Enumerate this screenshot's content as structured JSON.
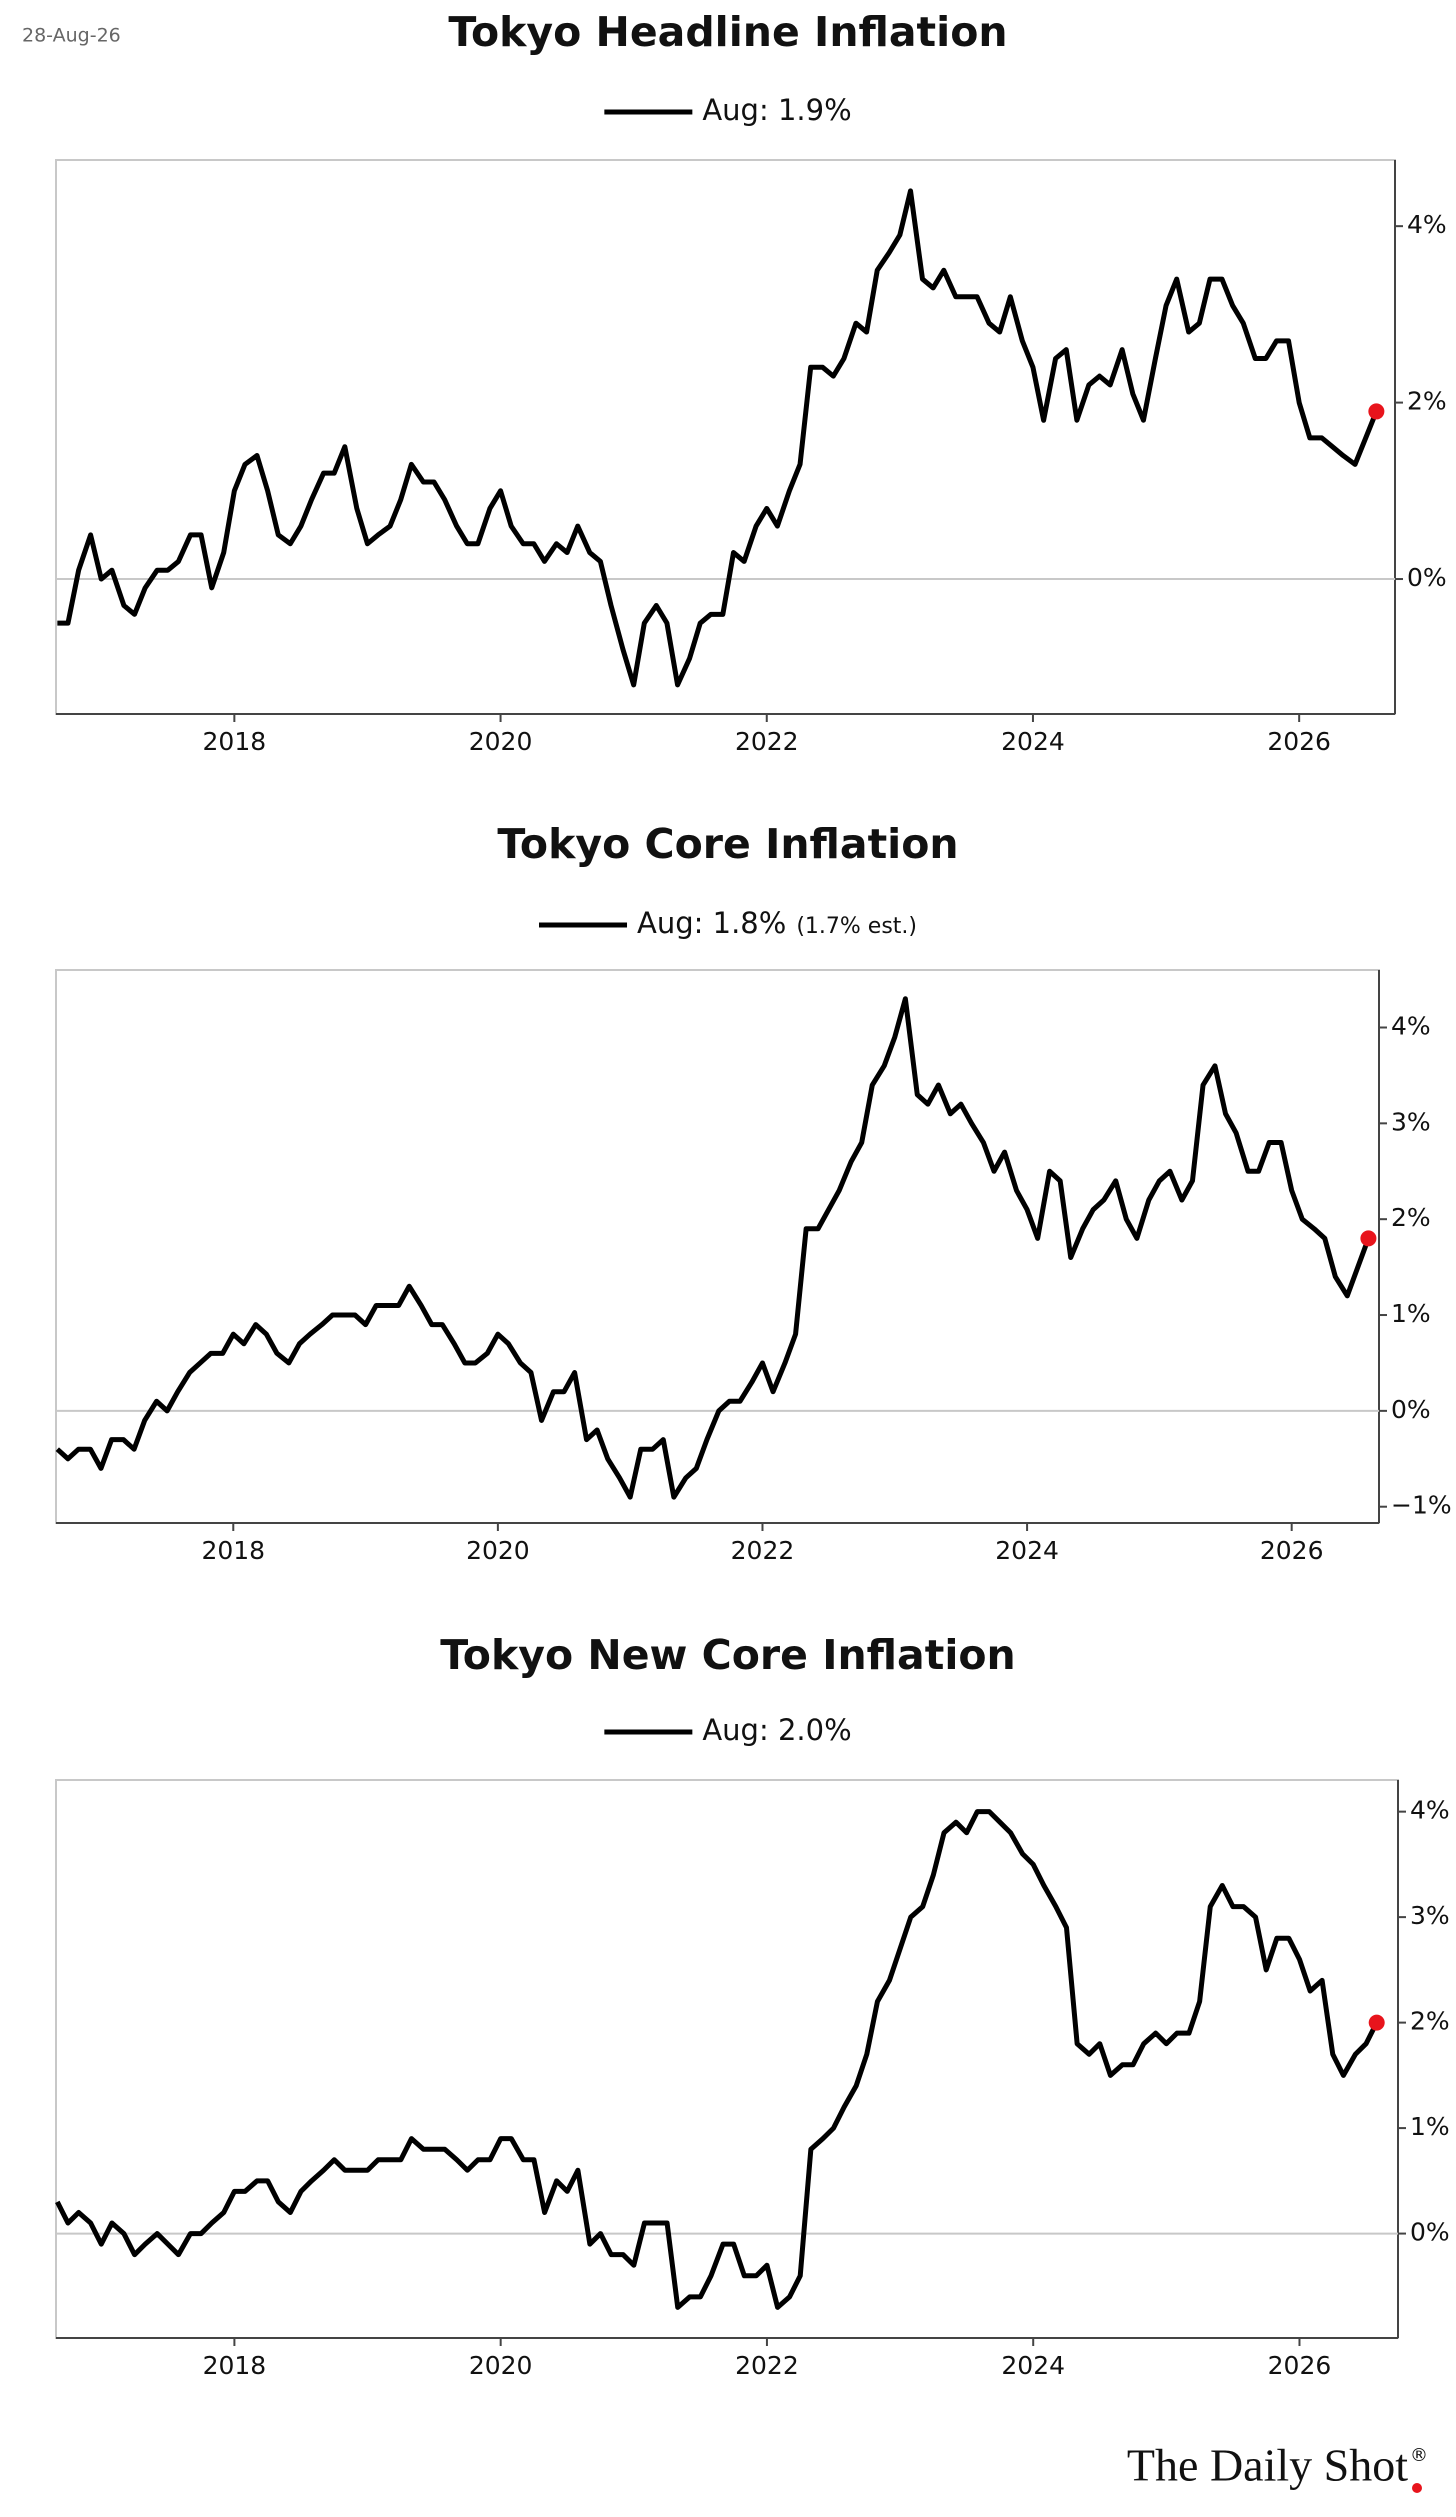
{
  "date": "28-Aug-26",
  "source": "The Daily Shot",
  "source_mark": "®",
  "chart_data": [
    {
      "type": "line",
      "title": "Tokyo Headline Inflation",
      "x": [
        2016.67,
        2016.75,
        2016.83,
        2016.92,
        2017.0,
        2017.08,
        2017.17,
        2017.25,
        2017.33,
        2017.42,
        2017.5,
        2017.58,
        2017.67,
        2017.75,
        2017.83,
        2017.92,
        2018.0,
        2018.08,
        2018.17,
        2018.25,
        2018.33,
        2018.42,
        2018.5,
        2018.58,
        2018.67,
        2018.75,
        2018.83,
        2018.92,
        2019.0,
        2019.08,
        2019.17,
        2019.25,
        2019.33,
        2019.42,
        2019.5,
        2019.58,
        2019.67,
        2019.75,
        2019.83,
        2019.92,
        2020.0,
        2020.08,
        2020.17,
        2020.25,
        2020.33,
        2020.42,
        2020.5,
        2020.58,
        2020.67,
        2020.75,
        2020.83,
        2020.92,
        2021.0,
        2021.08,
        2021.17,
        2021.25,
        2021.33,
        2021.42,
        2021.5,
        2021.58,
        2021.67,
        2021.75,
        2021.83,
        2021.92,
        2022.0,
        2022.08,
        2022.17,
        2022.25,
        2022.33,
        2022.42,
        2022.5,
        2022.58,
        2022.67,
        2022.75,
        2022.83,
        2022.92,
        2023.0,
        2023.08,
        2023.17,
        2023.25,
        2023.33,
        2023.42,
        2023.5,
        2023.58,
        2023.67,
        2023.75,
        2023.83,
        2023.92,
        2024.0,
        2024.08,
        2024.17,
        2024.25,
        2024.33,
        2024.42,
        2024.5,
        2024.58,
        2024.67,
        2024.75,
        2024.83,
        2024.92,
        2025.0,
        2025.08,
        2025.17,
        2025.25,
        2025.33,
        2025.42,
        2025.5,
        2025.58,
        2025.67,
        2025.75,
        2025.83,
        2025.92,
        2026.0,
        2026.08,
        2026.17,
        2026.25,
        2026.33,
        2026.42,
        2026.5,
        2026.58
      ],
      "series": [
        {
          "name": "Aug: 1.9%",
          "color": "#000000",
          "highlight_color": "#e8141c",
          "values": [
            -0.5,
            -0.5,
            0.1,
            0.5,
            0.0,
            0.1,
            -0.3,
            -0.4,
            -0.1,
            0.1,
            0.1,
            0.2,
            0.5,
            0.5,
            -0.1,
            0.3,
            1.0,
            1.3,
            1.4,
            1.0,
            0.5,
            0.4,
            0.6,
            0.9,
            1.2,
            1.2,
            1.5,
            0.8,
            0.4,
            0.5,
            0.6,
            0.9,
            1.3,
            1.1,
            1.1,
            0.9,
            0.6,
            0.4,
            0.4,
            0.8,
            1.0,
            0.6,
            0.4,
            0.4,
            0.2,
            0.4,
            0.3,
            0.6,
            0.3,
            0.2,
            -0.3,
            -0.8,
            -1.2,
            -0.5,
            -0.3,
            -0.5,
            -1.2,
            -0.9,
            -0.5,
            -0.4,
            -0.4,
            0.3,
            0.2,
            0.6,
            0.8,
            0.6,
            1.0,
            1.3,
            2.4,
            2.4,
            2.3,
            2.5,
            2.9,
            2.8,
            3.5,
            3.7,
            3.9,
            4.4,
            3.4,
            3.3,
            3.5,
            3.2,
            3.2,
            3.2,
            2.9,
            2.8,
            3.2,
            2.7,
            2.4,
            1.8,
            2.5,
            2.6,
            1.8,
            2.2,
            2.3,
            2.2,
            2.6,
            2.1,
            1.8,
            2.5,
            3.1,
            3.4,
            2.8,
            2.9,
            3.4,
            3.4,
            3.1,
            2.9,
            2.5,
            2.5,
            2.7,
            2.7,
            2.0,
            1.6,
            1.6,
            1.5,
            1.4,
            1.3,
            1.6,
            1.9
          ]
        }
      ],
      "xlim": [
        2016.66,
        2026.72
      ],
      "xticks": [
        2018,
        2020,
        2022,
        2024,
        2026
      ],
      "ylim": [
        -1.53,
        4.75
      ],
      "yticks": [
        {
          "value": 0,
          "label": "0%"
        },
        {
          "value": 2,
          "label": "2%"
        },
        {
          "value": 4,
          "label": "4%"
        }
      ],
      "grid": false
    },
    {
      "type": "line",
      "title": "Tokyo Core Inflation",
      "legend_note": "(1.7% est.)",
      "x": [
        2016.67,
        2016.75,
        2016.83,
        2016.92,
        2017.0,
        2017.08,
        2017.17,
        2017.25,
        2017.33,
        2017.42,
        2017.5,
        2017.58,
        2017.67,
        2017.75,
        2017.83,
        2017.92,
        2018.0,
        2018.08,
        2018.17,
        2018.25,
        2018.33,
        2018.42,
        2018.5,
        2018.58,
        2018.67,
        2018.75,
        2018.83,
        2018.92,
        2019.0,
        2019.08,
        2019.17,
        2019.25,
        2019.33,
        2019.42,
        2019.5,
        2019.58,
        2019.67,
        2019.75,
        2019.83,
        2019.92,
        2020.0,
        2020.08,
        2020.17,
        2020.25,
        2020.33,
        2020.42,
        2020.5,
        2020.58,
        2020.67,
        2020.75,
        2020.83,
        2020.92,
        2021.0,
        2021.08,
        2021.17,
        2021.25,
        2021.33,
        2021.42,
        2021.5,
        2021.58,
        2021.67,
        2021.75,
        2021.83,
        2021.92,
        2022.0,
        2022.08,
        2022.17,
        2022.25,
        2022.33,
        2022.42,
        2022.5,
        2022.58,
        2022.67,
        2022.75,
        2022.83,
        2022.92,
        2023.0,
        2023.08,
        2023.17,
        2023.25,
        2023.33,
        2023.42,
        2023.5,
        2023.58,
        2023.67,
        2023.75,
        2023.83,
        2023.92,
        2024.0,
        2024.08,
        2024.17,
        2024.25,
        2024.33,
        2024.42,
        2024.5,
        2024.58,
        2024.67,
        2024.75,
        2024.83,
        2024.92,
        2025.0,
        2025.08,
        2025.17,
        2025.25,
        2025.33,
        2025.42,
        2025.5,
        2025.58,
        2025.67,
        2025.75,
        2025.83,
        2025.92,
        2026.0,
        2026.08,
        2026.17,
        2026.25,
        2026.33,
        2026.42,
        2026.5,
        2026.58
      ],
      "series": [
        {
          "name": "Aug: 1.8%",
          "color": "#000000",
          "highlight_color": "#e8141c",
          "values": [
            -0.4,
            -0.5,
            -0.4,
            -0.4,
            -0.6,
            -0.3,
            -0.3,
            -0.4,
            -0.1,
            0.1,
            0.0,
            0.2,
            0.4,
            0.5,
            0.6,
            0.6,
            0.8,
            0.7,
            0.9,
            0.8,
            0.6,
            0.5,
            0.7,
            0.8,
            0.9,
            1.0,
            1.0,
            1.0,
            0.9,
            1.1,
            1.1,
            1.1,
            1.3,
            1.1,
            0.9,
            0.9,
            0.7,
            0.5,
            0.5,
            0.6,
            0.8,
            0.7,
            0.5,
            0.4,
            -0.1,
            0.2,
            0.2,
            0.4,
            -0.3,
            -0.2,
            -0.5,
            -0.7,
            -0.9,
            -0.4,
            -0.4,
            -0.3,
            -0.9,
            -0.7,
            -0.6,
            -0.3,
            0.0,
            0.1,
            0.1,
            0.3,
            0.5,
            0.2,
            0.5,
            0.8,
            1.9,
            1.9,
            2.1,
            2.3,
            2.6,
            2.8,
            3.4,
            3.6,
            3.9,
            4.3,
            3.3,
            3.2,
            3.4,
            3.1,
            3.2,
            3.0,
            2.8,
            2.5,
            2.7,
            2.3,
            2.1,
            1.8,
            2.5,
            2.4,
            1.6,
            1.9,
            2.1,
            2.2,
            2.4,
            2.0,
            1.8,
            2.2,
            2.4,
            2.5,
            2.2,
            2.4,
            3.4,
            3.6,
            3.1,
            2.9,
            2.5,
            2.5,
            2.8,
            2.8,
            2.3,
            2.0,
            1.9,
            1.8,
            1.4,
            1.2,
            1.5,
            1.8
          ]
        }
      ],
      "xlim": [
        2016.66,
        2026.66
      ],
      "xticks": [
        2018,
        2020,
        2022,
        2024,
        2026
      ],
      "ylim": [
        -1.17,
        4.6
      ],
      "yticks": [
        {
          "value": -1,
          "label": "−1%"
        },
        {
          "value": 0,
          "label": "0%"
        },
        {
          "value": 1,
          "label": "1%"
        },
        {
          "value": 2,
          "label": "2%"
        },
        {
          "value": 3,
          "label": "3%"
        },
        {
          "value": 4,
          "label": "4%"
        }
      ],
      "grid": false
    },
    {
      "type": "line",
      "title": "Tokyo New Core Inflation",
      "x": [
        2016.67,
        2016.75,
        2016.83,
        2016.92,
        2017.0,
        2017.08,
        2017.17,
        2017.25,
        2017.33,
        2017.42,
        2017.5,
        2017.58,
        2017.67,
        2017.75,
        2017.83,
        2017.92,
        2018.0,
        2018.08,
        2018.17,
        2018.25,
        2018.33,
        2018.42,
        2018.5,
        2018.58,
        2018.67,
        2018.75,
        2018.83,
        2018.92,
        2019.0,
        2019.08,
        2019.17,
        2019.25,
        2019.33,
        2019.42,
        2019.5,
        2019.58,
        2019.67,
        2019.75,
        2019.83,
        2019.92,
        2020.0,
        2020.08,
        2020.17,
        2020.25,
        2020.33,
        2020.42,
        2020.5,
        2020.58,
        2020.67,
        2020.75,
        2020.83,
        2020.92,
        2021.0,
        2021.08,
        2021.17,
        2021.25,
        2021.33,
        2021.42,
        2021.5,
        2021.58,
        2021.67,
        2021.75,
        2021.83,
        2021.92,
        2022.0,
        2022.08,
        2022.17,
        2022.25,
        2022.33,
        2022.42,
        2022.5,
        2022.58,
        2022.67,
        2022.75,
        2022.83,
        2022.92,
        2023.0,
        2023.08,
        2023.17,
        2023.25,
        2023.33,
        2023.42,
        2023.5,
        2023.58,
        2023.67,
        2023.75,
        2023.83,
        2023.92,
        2024.0,
        2024.08,
        2024.17,
        2024.25,
        2024.33,
        2024.42,
        2024.5,
        2024.58,
        2024.67,
        2024.75,
        2024.83,
        2024.92,
        2025.0,
        2025.08,
        2025.17,
        2025.25,
        2025.33,
        2025.42,
        2025.5,
        2025.58,
        2025.67,
        2025.75,
        2025.83,
        2025.92,
        2026.0,
        2026.08,
        2026.17,
        2026.25,
        2026.33,
        2026.42,
        2026.5,
        2026.58
      ],
      "series": [
        {
          "name": "Aug: 2.0%",
          "color": "#000000",
          "highlight_color": "#e8141c",
          "values": [
            0.3,
            0.1,
            0.2,
            0.1,
            -0.1,
            0.1,
            0.0,
            -0.2,
            -0.1,
            0.0,
            -0.1,
            -0.2,
            0.0,
            0.0,
            0.1,
            0.2,
            0.4,
            0.4,
            0.5,
            0.5,
            0.3,
            0.2,
            0.4,
            0.5,
            0.6,
            0.7,
            0.6,
            0.6,
            0.6,
            0.7,
            0.7,
            0.7,
            0.9,
            0.8,
            0.8,
            0.8,
            0.7,
            0.6,
            0.7,
            0.7,
            0.9,
            0.9,
            0.7,
            0.7,
            0.2,
            0.5,
            0.4,
            0.6,
            -0.1,
            0.0,
            -0.2,
            -0.2,
            -0.3,
            0.1,
            0.1,
            0.1,
            -0.7,
            -0.6,
            -0.6,
            -0.4,
            -0.1,
            -0.1,
            -0.4,
            -0.4,
            -0.3,
            -0.7,
            -0.6,
            -0.4,
            0.8,
            0.9,
            1.0,
            1.2,
            1.4,
            1.7,
            2.2,
            2.4,
            2.7,
            3.0,
            3.1,
            3.4,
            3.8,
            3.9,
            3.8,
            4.0,
            4.0,
            3.9,
            3.8,
            3.6,
            3.5,
            3.3,
            3.1,
            2.9,
            1.8,
            1.7,
            1.8,
            1.5,
            1.6,
            1.6,
            1.8,
            1.9,
            1.8,
            1.9,
            1.9,
            2.2,
            3.1,
            3.3,
            3.1,
            3.1,
            3.0,
            2.5,
            2.8,
            2.8,
            2.6,
            2.3,
            2.4,
            1.7,
            1.5,
            1.7,
            1.8,
            2.0
          ]
        }
      ],
      "xlim": [
        2016.66,
        2026.74
      ],
      "xticks": [
        2018,
        2020,
        2022,
        2024,
        2026
      ],
      "ylim": [
        -0.99,
        4.3
      ],
      "yticks": [
        {
          "value": 0,
          "label": "0%"
        },
        {
          "value": 1,
          "label": "1%"
        },
        {
          "value": 2,
          "label": "2%"
        },
        {
          "value": 3,
          "label": "3%"
        },
        {
          "value": 4,
          "label": "4%"
        }
      ],
      "grid": false
    }
  ]
}
